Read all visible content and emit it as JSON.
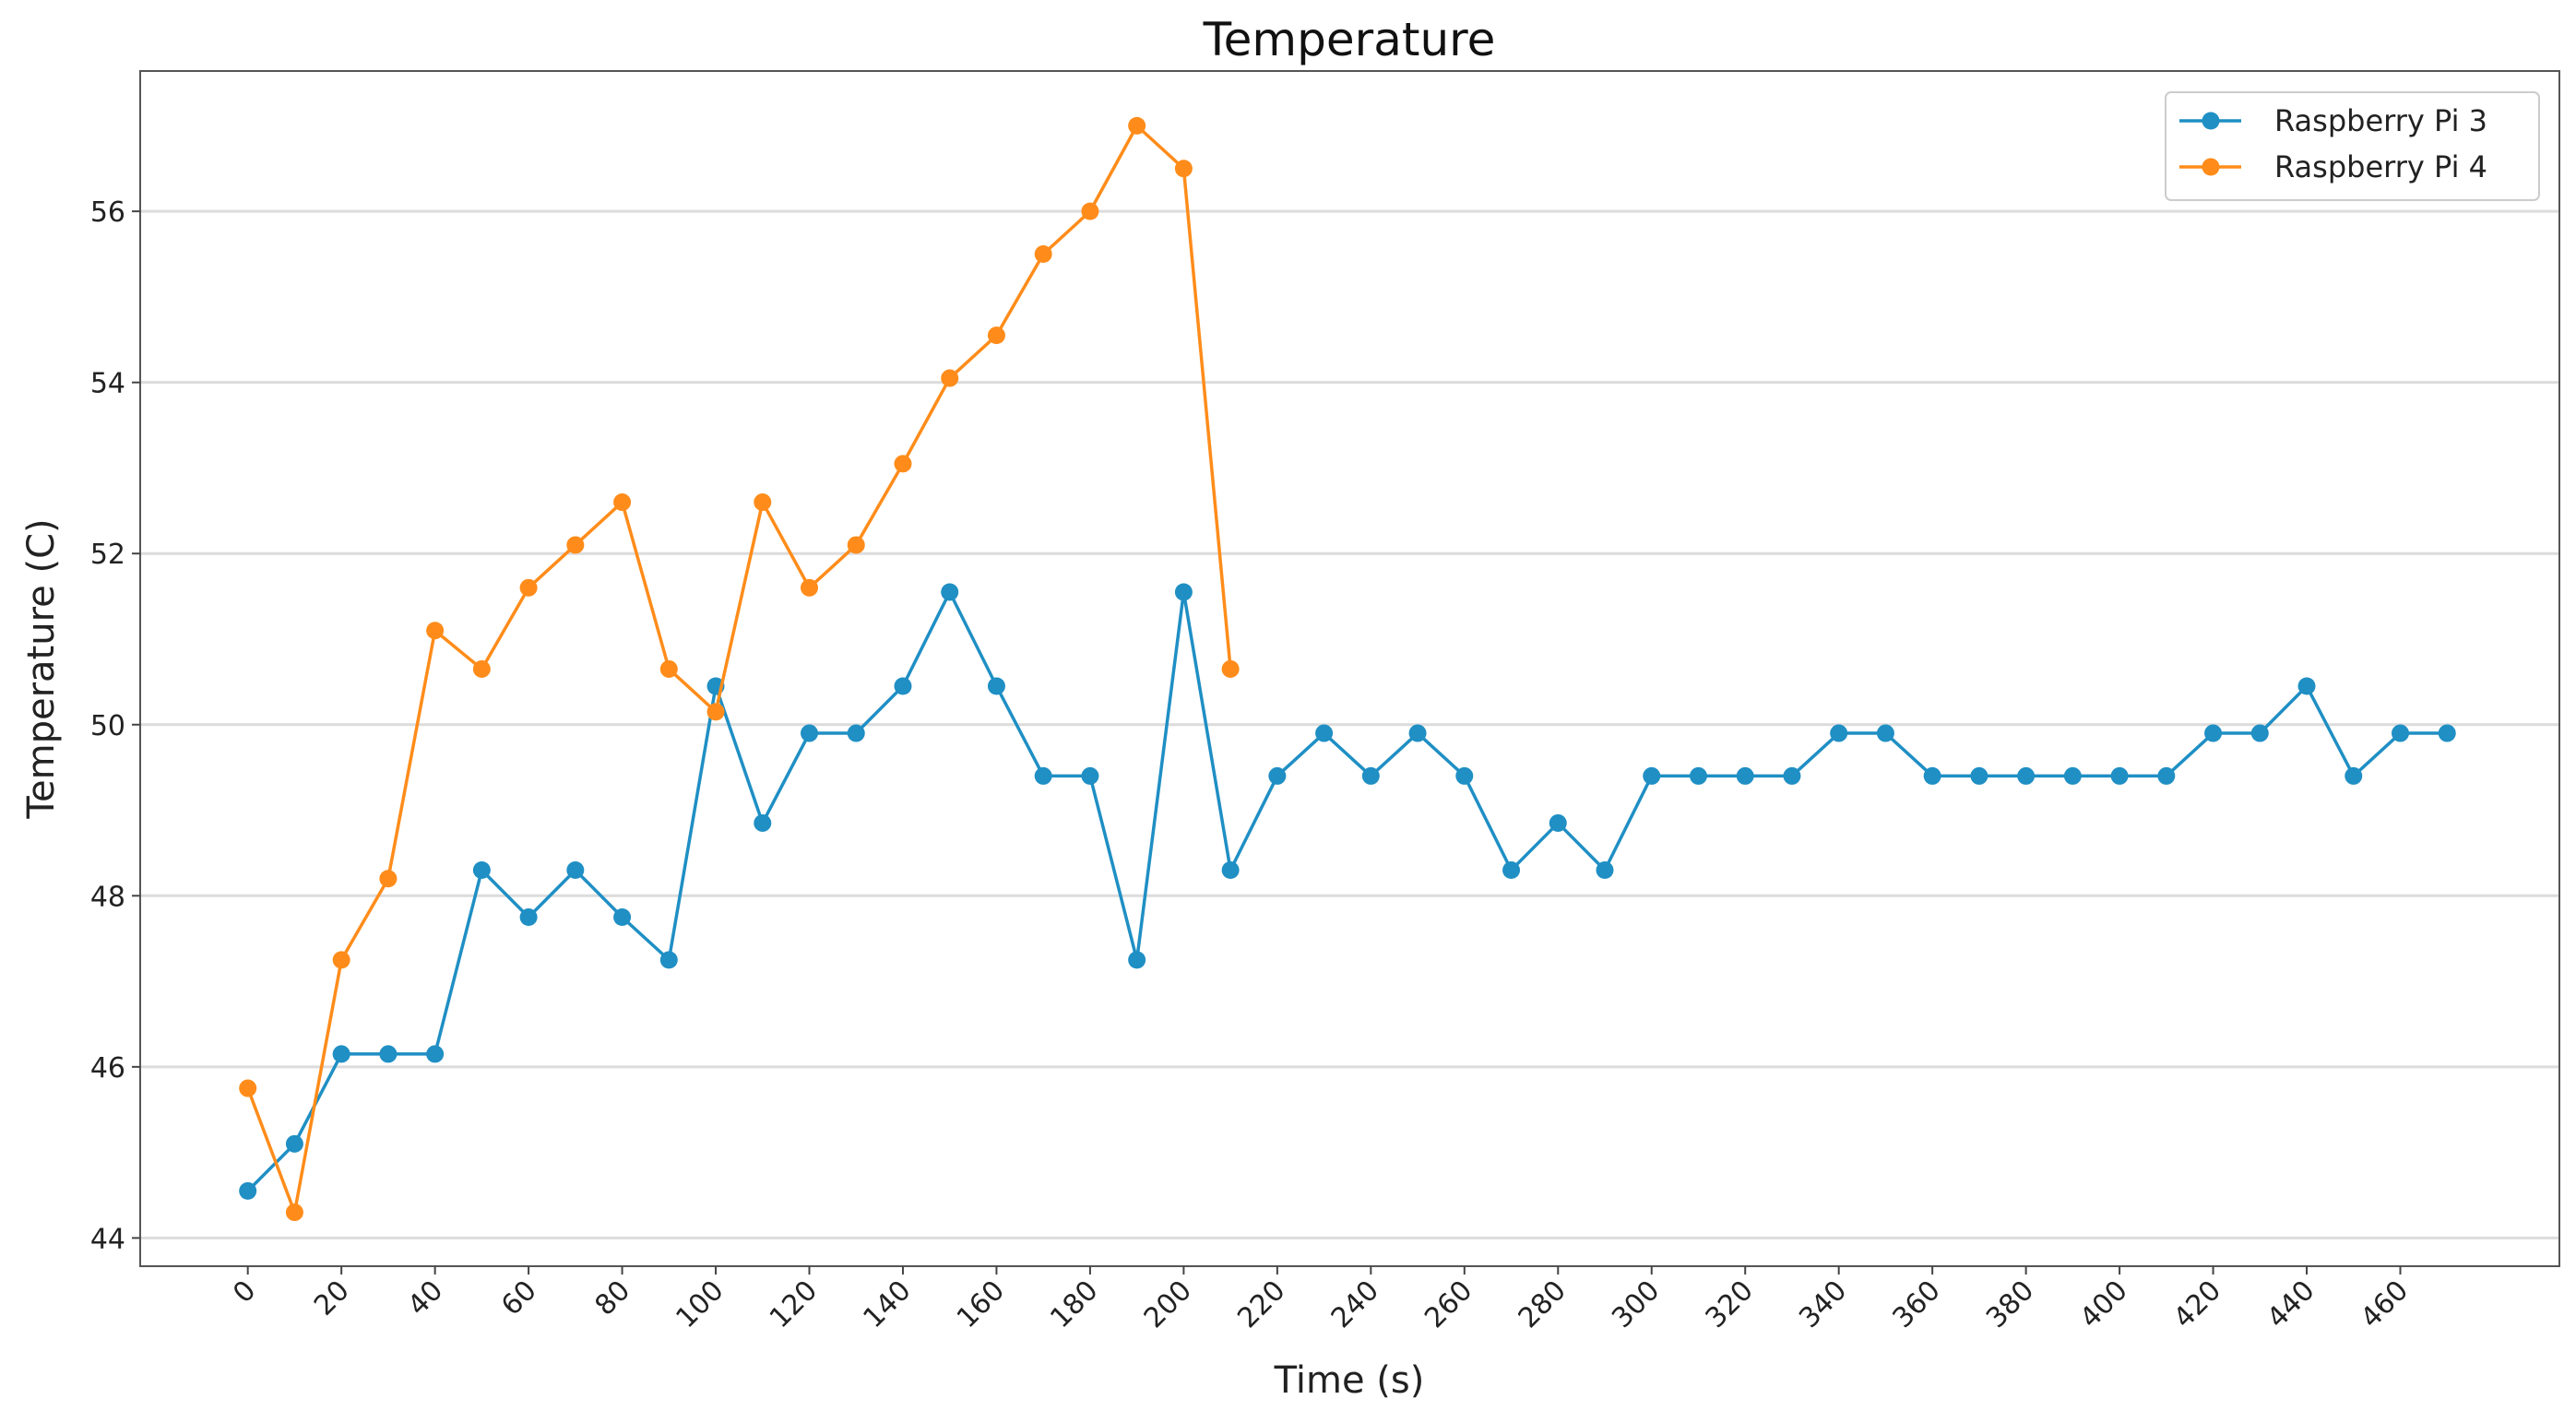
{
  "chart_data": {
    "type": "line",
    "title": "Temperature",
    "xlabel": "Time (s)",
    "ylabel": "Temperature (C)",
    "xlim": [
      -23,
      494
    ],
    "ylim": [
      43.67,
      57.64
    ],
    "xticks": [
      0,
      20,
      40,
      60,
      80,
      100,
      120,
      140,
      160,
      180,
      200,
      220,
      240,
      260,
      280,
      300,
      320,
      340,
      360,
      380,
      400,
      420,
      440,
      460
    ],
    "yticks": [
      44,
      46,
      48,
      50,
      52,
      54,
      56
    ],
    "grid": "horizontal",
    "legend_position": "top-right",
    "series": [
      {
        "name": "Raspberry Pi 3",
        "color": "#1f8fc4",
        "x": [
          0,
          10,
          20,
          30,
          40,
          50,
          60,
          70,
          80,
          90,
          100,
          110,
          120,
          130,
          140,
          150,
          160,
          170,
          180,
          190,
          200,
          210,
          220,
          230,
          240,
          250,
          260,
          270,
          280,
          290,
          300,
          310,
          320,
          330,
          340,
          350,
          360,
          370,
          380,
          390,
          400,
          410,
          420,
          430,
          440,
          450,
          460,
          470
        ],
        "y": [
          44.55,
          45.1,
          46.15,
          46.15,
          46.15,
          48.3,
          47.75,
          48.3,
          47.75,
          47.25,
          50.45,
          48.85,
          49.9,
          49.9,
          50.45,
          51.55,
          50.45,
          49.4,
          49.4,
          47.25,
          51.55,
          48.3,
          49.4,
          49.9,
          49.4,
          49.9,
          49.4,
          48.3,
          48.85,
          48.3,
          49.4,
          49.4,
          49.4,
          49.4,
          49.9,
          49.9,
          49.4,
          49.4,
          49.4,
          49.4,
          49.4,
          49.4,
          49.9,
          49.9,
          50.45,
          49.4,
          49.9,
          49.9
        ]
      },
      {
        "name": "Raspberry Pi 4",
        "color": "#ff8c1a",
        "x": [
          0,
          10,
          20,
          30,
          40,
          50,
          60,
          70,
          80,
          90,
          100,
          110,
          120,
          130,
          140,
          150,
          160,
          170,
          180,
          190,
          200,
          210
        ],
        "y": [
          45.75,
          44.3,
          47.25,
          48.2,
          51.1,
          50.65,
          51.6,
          52.1,
          52.6,
          50.65,
          50.15,
          52.6,
          51.6,
          52.1,
          53.05,
          54.05,
          54.55,
          55.5,
          56.0,
          57.0,
          56.5,
          50.65
        ]
      }
    ]
  }
}
